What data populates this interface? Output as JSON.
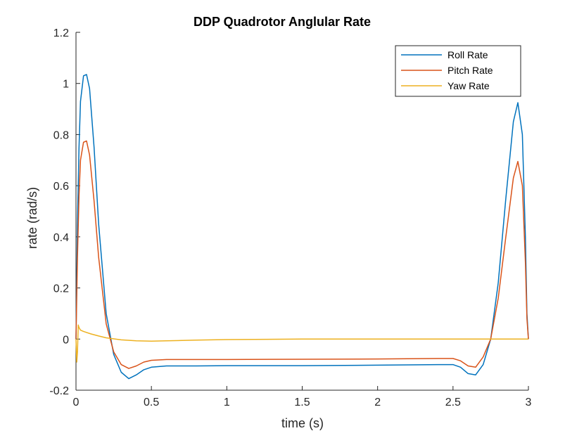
{
  "chart_data": {
    "type": "line",
    "title": "DDP Quadrotor Anglular Rate",
    "xlabel": "time (s)",
    "ylabel": "rate (rad/s)",
    "xlim": [
      0,
      3
    ],
    "ylim": [
      -0.2,
      1.2
    ],
    "xticks": [
      0,
      0.5,
      1,
      1.5,
      2,
      2.5,
      3
    ],
    "xtick_labels": [
      "0",
      "0.5",
      "1",
      "1.5",
      "2",
      "2.5",
      "3"
    ],
    "yticks": [
      -0.2,
      0,
      0.2,
      0.4,
      0.6,
      0.8,
      1,
      1.2
    ],
    "ytick_labels": [
      "-0.2",
      "0",
      "0.2",
      "0.4",
      "0.6",
      "0.8",
      "1",
      "1.2"
    ],
    "grid": false,
    "legend_position": "top-right",
    "series": [
      {
        "name": "Roll Rate",
        "color": "#0072BD",
        "x": [
          0,
          0.01,
          0.02,
          0.03,
          0.05,
          0.07,
          0.09,
          0.12,
          0.15,
          0.2,
          0.25,
          0.3,
          0.35,
          0.4,
          0.45,
          0.5,
          0.6,
          0.8,
          1.0,
          1.5,
          2.0,
          2.4,
          2.5,
          2.55,
          2.6,
          2.65,
          2.7,
          2.75,
          2.8,
          2.85,
          2.9,
          2.93,
          2.96,
          2.98,
          2.99,
          3.0
        ],
        "y": [
          0.0,
          0.45,
          0.75,
          0.93,
          1.03,
          1.035,
          0.98,
          0.75,
          0.45,
          0.1,
          -0.06,
          -0.13,
          -0.155,
          -0.14,
          -0.12,
          -0.11,
          -0.105,
          -0.105,
          -0.104,
          -0.104,
          -0.102,
          -0.1,
          -0.1,
          -0.11,
          -0.135,
          -0.14,
          -0.1,
          0.0,
          0.22,
          0.55,
          0.85,
          0.925,
          0.8,
          0.4,
          0.1,
          0.0
        ]
      },
      {
        "name": "Pitch Rate",
        "color": "#D95319",
        "x": [
          0,
          0.01,
          0.02,
          0.03,
          0.05,
          0.07,
          0.09,
          0.12,
          0.15,
          0.2,
          0.25,
          0.3,
          0.35,
          0.4,
          0.45,
          0.5,
          0.6,
          0.8,
          1.0,
          1.5,
          2.0,
          2.4,
          2.5,
          2.55,
          2.6,
          2.65,
          2.7,
          2.75,
          2.8,
          2.85,
          2.9,
          2.93,
          2.96,
          2.98,
          2.99,
          3.0
        ],
        "y": [
          0.0,
          0.32,
          0.56,
          0.7,
          0.77,
          0.775,
          0.72,
          0.54,
          0.32,
          0.06,
          -0.05,
          -0.1,
          -0.115,
          -0.105,
          -0.09,
          -0.083,
          -0.08,
          -0.08,
          -0.08,
          -0.079,
          -0.078,
          -0.076,
          -0.076,
          -0.085,
          -0.105,
          -0.11,
          -0.07,
          0.0,
          0.16,
          0.4,
          0.63,
          0.695,
          0.6,
          0.3,
          0.08,
          0.0
        ]
      },
      {
        "name": "Yaw Rate",
        "color": "#EDB120",
        "x": [
          0,
          0.005,
          0.01,
          0.015,
          0.02,
          0.03,
          0.05,
          0.1,
          0.15,
          0.2,
          0.3,
          0.4,
          0.5,
          0.6,
          0.8,
          1.0,
          1.5,
          2.0,
          2.5,
          2.8,
          3.0
        ],
        "y": [
          0.0,
          -0.09,
          -0.05,
          0.055,
          0.045,
          0.035,
          0.03,
          0.02,
          0.012,
          0.005,
          -0.003,
          -0.007,
          -0.008,
          -0.007,
          -0.004,
          -0.002,
          0.0,
          0.0,
          0.0,
          0.0,
          0.0
        ]
      }
    ]
  }
}
